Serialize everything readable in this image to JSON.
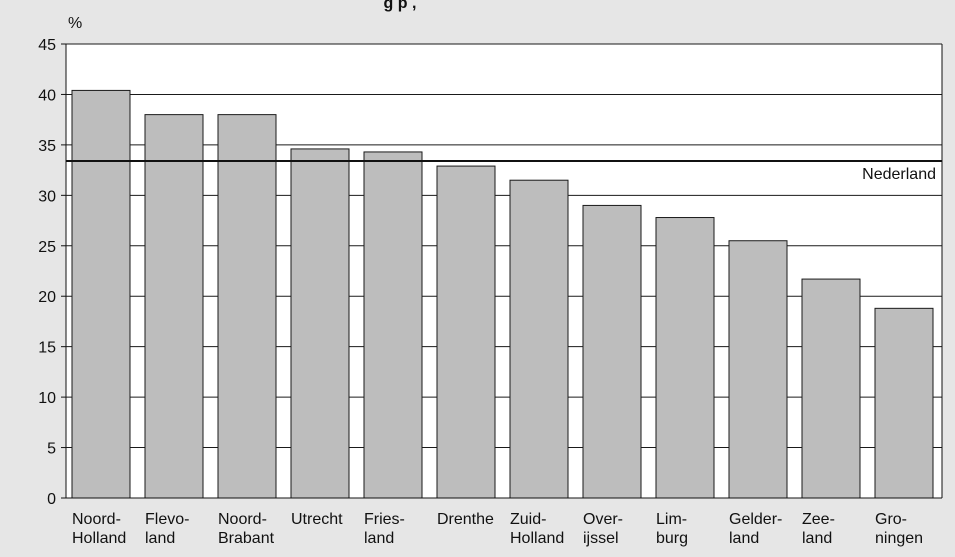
{
  "chart_data": {
    "type": "bar",
    "title_fragment": "g       p       ,",
    "ylabel": "%",
    "ylim": [
      0,
      45
    ],
    "yticks": [
      0,
      5,
      10,
      15,
      20,
      25,
      30,
      35,
      40,
      45
    ],
    "grid": true,
    "categories": [
      [
        "Noord-",
        "Holland"
      ],
      [
        "Flevo-",
        "land"
      ],
      [
        "Noord-",
        "Brabant"
      ],
      [
        "Utrecht"
      ],
      [
        "Fries-",
        "land"
      ],
      [
        "Drenthe"
      ],
      [
        "Zuid-",
        "Holland"
      ],
      [
        "Over-",
        "ijssel"
      ],
      [
        "Lim-",
        "burg"
      ],
      [
        "Gelder-",
        "land"
      ],
      [
        "Zee-",
        "land"
      ],
      [
        "Gro-",
        "ningen"
      ]
    ],
    "values": [
      40.4,
      38.0,
      38.0,
      34.6,
      34.3,
      32.9,
      31.5,
      29.0,
      27.8,
      25.5,
      21.7,
      18.8
    ],
    "reference_line": {
      "label": "Nederland",
      "value": 33.4
    },
    "colors": {
      "bar": "#bdbdbd",
      "bar_stroke": "#1a1a1a",
      "plot_bg": "#ffffff",
      "page_bg": "#e6e6e6",
      "grid": "#1a1a1a"
    }
  }
}
